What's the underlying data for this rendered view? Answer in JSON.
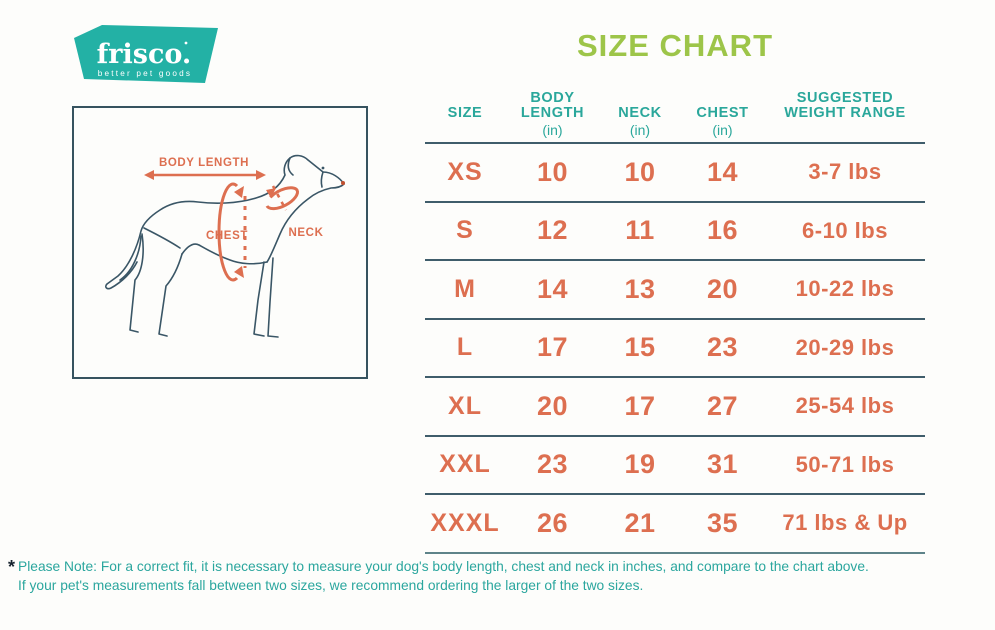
{
  "logo": {
    "name": "frisco.",
    "tagline": "better pet goods",
    "bg_color": "#23b1a5",
    "text_color": "#ffffff"
  },
  "title": "SIZE CHART",
  "diagram": {
    "labels": {
      "body_length": "BODY LENGTH",
      "chest": "CHEST",
      "neck": "NECK"
    },
    "annotation_color": "#dd6f50",
    "outline_color": "#3a5666"
  },
  "chart_data": {
    "type": "table",
    "title": "SIZE CHART",
    "columns": [
      {
        "label": "SIZE",
        "unit": ""
      },
      {
        "label": "BODY LENGTH",
        "unit": "(in)"
      },
      {
        "label": "NECK",
        "unit": "(in)"
      },
      {
        "label": "CHEST",
        "unit": "(in)"
      },
      {
        "label": "SUGGESTED WEIGHT RANGE",
        "unit": ""
      }
    ],
    "rows": [
      [
        "XS",
        "10",
        "10",
        "14",
        "3-7 lbs"
      ],
      [
        "S",
        "12",
        "11",
        "16",
        "6-10 lbs"
      ],
      [
        "M",
        "14",
        "13",
        "20",
        "10-22 lbs"
      ],
      [
        "L",
        "17",
        "15",
        "23",
        "20-29 lbs"
      ],
      [
        "XL",
        "20",
        "17",
        "27",
        "25-54 lbs"
      ],
      [
        "XXL",
        "23",
        "19",
        "31",
        "50-71 lbs"
      ],
      [
        "XXXL",
        "26",
        "21",
        "35",
        "71 lbs & Up"
      ]
    ]
  },
  "note": {
    "marker": "*",
    "line1": "Please Note: For a correct fit, it is necessary to measure your dog's body length, chest and neck in inches, and compare to the chart above.",
    "line2": "If your pet's measurements fall between two sizes, we recommend ordering the larger of the two sizes."
  },
  "colors": {
    "teal": "#23b1a5",
    "header_teal": "#2aa79b",
    "green": "#9dc549",
    "orange": "#dd6f50",
    "line": "#3f5d6b",
    "note_teal": "#2ba69e"
  }
}
